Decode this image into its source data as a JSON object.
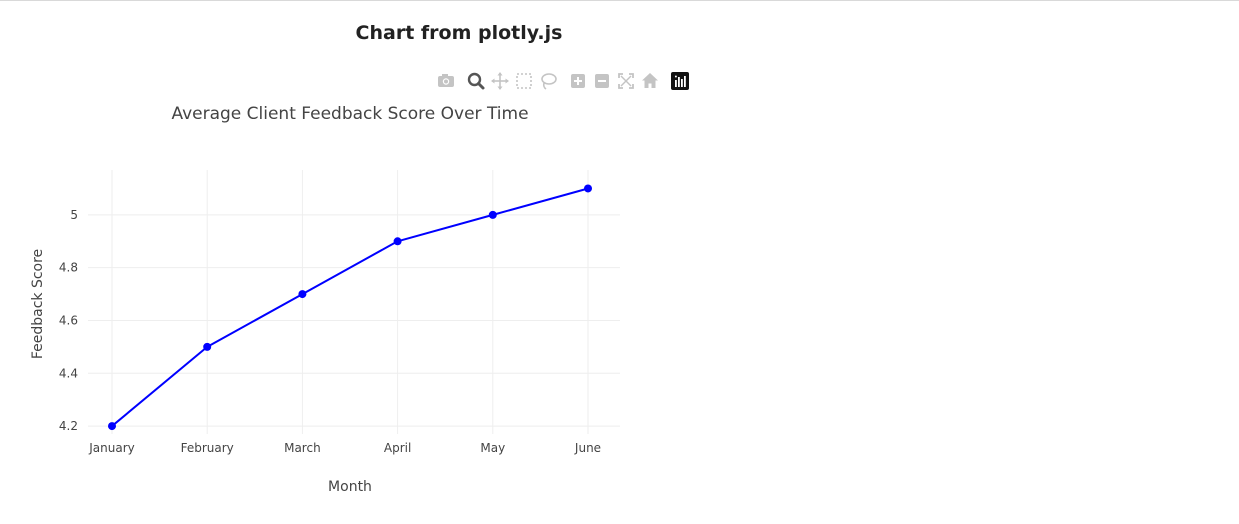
{
  "page": {
    "heading": "Chart from plotly.js"
  },
  "modebar": {
    "buttons": [
      {
        "icon": "camera-icon",
        "group": 1,
        "active": false
      },
      {
        "icon": "zoom-icon",
        "group": 2,
        "active": true
      },
      {
        "icon": "pan-icon",
        "group": 2,
        "active": false
      },
      {
        "icon": "box-select-icon",
        "group": 2,
        "active": false
      },
      {
        "icon": "lasso-select-icon",
        "group": 2,
        "active": false
      },
      {
        "icon": "zoom-in-icon",
        "group": 3,
        "active": false
      },
      {
        "icon": "zoom-out-icon",
        "group": 3,
        "active": false
      },
      {
        "icon": "autoscale-icon",
        "group": 3,
        "active": false
      },
      {
        "icon": "reset-axes-icon",
        "group": 3,
        "active": false
      },
      {
        "icon": "plotly-logo-icon",
        "group": 4,
        "active": false
      }
    ],
    "icon_color": "#c4c4c4",
    "active_color": "#555555"
  },
  "chart_data": {
    "type": "line",
    "title": "Average Client Feedback Score Over Time",
    "xlabel": "Month",
    "ylabel": "Feedback Score",
    "categories": [
      "January",
      "February",
      "March",
      "April",
      "May",
      "June"
    ],
    "series": [
      {
        "values": [
          4.2,
          4.5,
          4.7,
          4.9,
          5.0,
          5.1
        ],
        "color": "#0000ff",
        "mode": "lines+markers"
      }
    ],
    "y_ticks": [
      "4.2",
      "4.4",
      "4.6",
      "4.8",
      "5"
    ],
    "y_tick_values": [
      4.2,
      4.4,
      4.6,
      4.8,
      5.0
    ],
    "ylim": [
      4.17,
      5.17
    ],
    "grid": true,
    "legend": "none"
  }
}
